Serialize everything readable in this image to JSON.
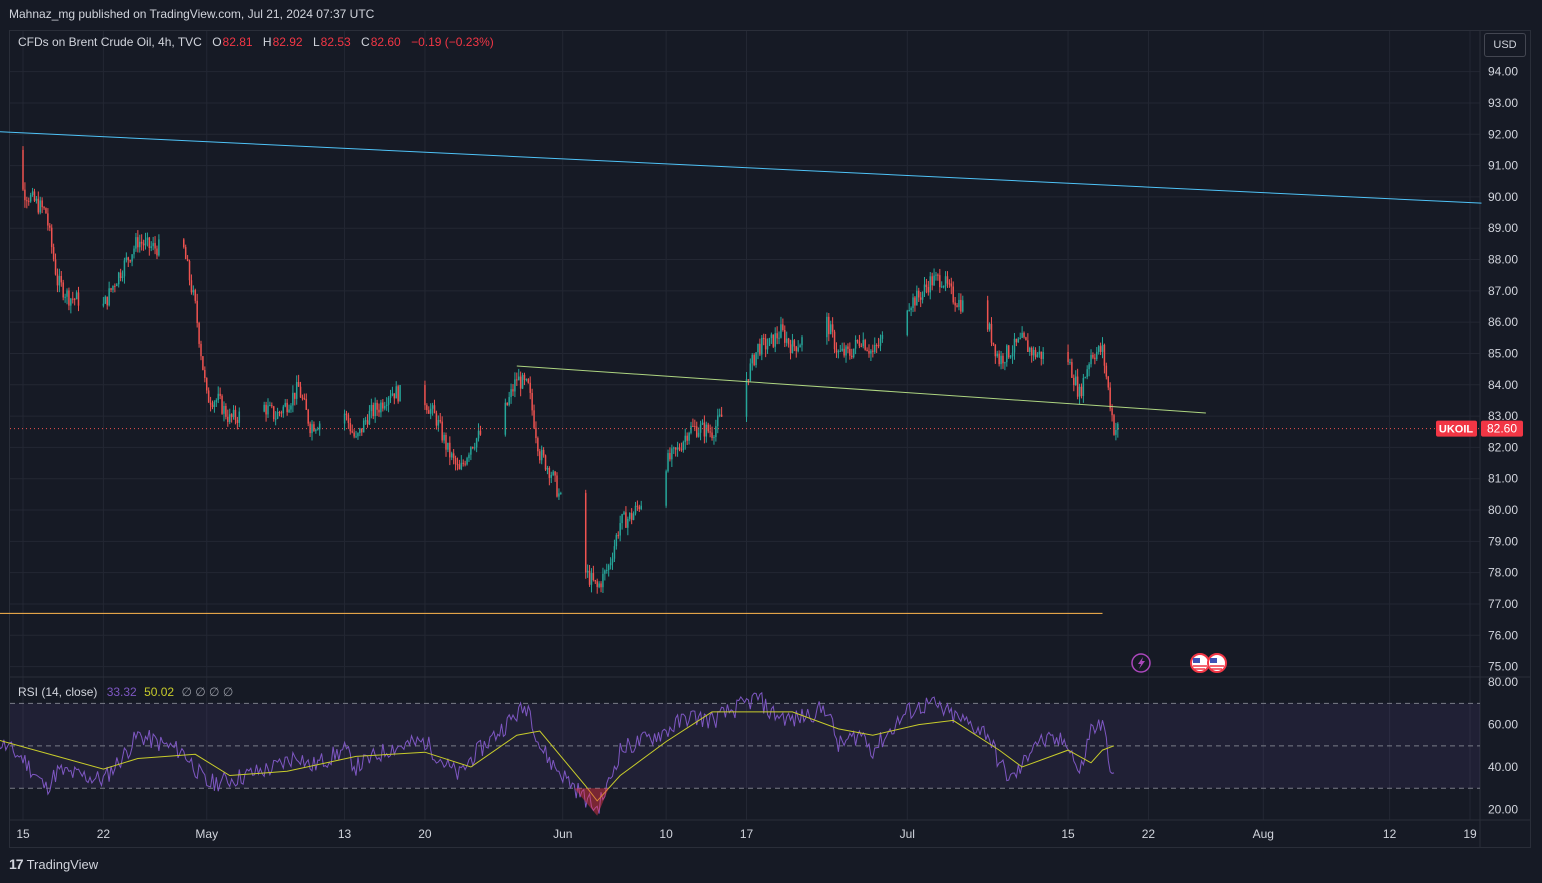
{
  "header": {
    "published": "Mahnaz_mg published on TradingView.com, Jul 21, 2024 07:37 UTC"
  },
  "legend": {
    "symbol": "CFDs on Brent Crude Oil, 4h, TVC",
    "o_label": "O",
    "o_value": "82.81",
    "h_label": "H",
    "h_value": "82.92",
    "l_label": "L",
    "l_value": "82.53",
    "c_label": "C",
    "c_value": "82.60",
    "change": "−0.19 (−0.23%)"
  },
  "currency_button": "USD",
  "price_tag": {
    "symbol": "UKOIL",
    "value": "82.60"
  },
  "rsi_legend": {
    "name": "RSI (14, close)",
    "rsi_value": "33.32",
    "ma_value": "50.02",
    "extras": "∅ ∅ ∅ ∅"
  },
  "footer": {
    "brand": "TradingView"
  },
  "colors": {
    "background": "#161a25",
    "up": "#26a69a",
    "down": "#ef5350",
    "resistance_line": "#4fc3f7",
    "support_line": "#ffb74d",
    "trend_line": "#aed581",
    "rsi_line": "#7e57c2",
    "rsi_ma": "#c8cc2b"
  },
  "chart_data": [
    {
      "type": "candlestick",
      "title": "CFDs on Brent Crude Oil, 4h, TVC",
      "xlabel": "",
      "ylabel": "",
      "ylim": [
        74.7,
        94.5
      ],
      "y_ticks": [
        "94.00",
        "93.00",
        "92.00",
        "91.00",
        "90.00",
        "89.00",
        "88.00",
        "87.00",
        "86.00",
        "85.00",
        "84.00",
        "83.00",
        "82.00",
        "81.00",
        "80.00",
        "79.00",
        "78.00",
        "77.00",
        "76.00",
        "75.00"
      ],
      "x_ticks": [
        "15",
        "22",
        "May",
        "13",
        "20",
        "Jun",
        "10",
        "17",
        "Jul",
        "15",
        "22",
        "Aug",
        "12",
        "19"
      ],
      "x_tick_dates": [
        "2024-04-15",
        "2024-04-22",
        "2024-05-01",
        "2024-05-13",
        "2024-05-20",
        "2024-06-01",
        "2024-06-10",
        "2024-06-17",
        "2024-07-01",
        "2024-07-15",
        "2024-07-22",
        "2024-08-01",
        "2024-08-12",
        "2024-08-19"
      ],
      "last_price": 82.6,
      "path_close": [
        [
          "2024-04-12",
          92.2
        ],
        [
          "2024-04-15",
          90.2
        ],
        [
          "2024-04-17",
          89.5
        ],
        [
          "2024-04-18",
          87.3
        ],
        [
          "2024-04-19",
          86.8
        ],
        [
          "2024-04-22",
          86.5
        ],
        [
          "2024-04-23",
          87.3
        ],
        [
          "2024-04-25",
          88.6
        ],
        [
          "2024-04-26",
          88.4
        ],
        [
          "2024-04-29",
          88.3
        ],
        [
          "2024-04-30",
          86.5
        ],
        [
          "2024-05-01",
          83.6
        ],
        [
          "2024-05-02",
          83.5
        ],
        [
          "2024-05-03",
          82.9
        ],
        [
          "2024-05-06",
          83.3
        ],
        [
          "2024-05-07",
          83.0
        ],
        [
          "2024-05-08",
          83.4
        ],
        [
          "2024-05-09",
          83.9
        ],
        [
          "2024-05-10",
          82.7
        ],
        [
          "2024-05-13",
          83.1
        ],
        [
          "2024-05-14",
          82.2
        ],
        [
          "2024-05-15",
          83.0
        ],
        [
          "2024-05-16",
          83.3
        ],
        [
          "2024-05-17",
          83.8
        ],
        [
          "2024-05-20",
          83.5
        ],
        [
          "2024-05-21",
          82.9
        ],
        [
          "2024-05-22",
          81.9
        ],
        [
          "2024-05-23",
          81.2
        ],
        [
          "2024-05-24",
          82.1
        ],
        [
          "2024-05-27",
          83.2
        ],
        [
          "2024-05-28",
          84.2
        ],
        [
          "2024-05-29",
          83.9
        ],
        [
          "2024-05-30",
          81.8
        ],
        [
          "2024-05-31",
          81.2
        ],
        [
          "2024-06-03",
          78.0
        ],
        [
          "2024-06-04",
          77.5
        ],
        [
          "2024-06-05",
          78.2
        ],
        [
          "2024-06-06",
          79.6
        ],
        [
          "2024-06-07",
          79.8
        ],
        [
          "2024-06-10",
          81.5
        ],
        [
          "2024-06-11",
          81.9
        ],
        [
          "2024-06-12",
          82.6
        ],
        [
          "2024-06-13",
          82.6
        ],
        [
          "2024-06-14",
          82.5
        ],
        [
          "2024-06-17",
          84.2
        ],
        [
          "2024-06-18",
          85.2
        ],
        [
          "2024-06-19",
          85.3
        ],
        [
          "2024-06-20",
          85.7
        ],
        [
          "2024-06-21",
          85.2
        ],
        [
          "2024-06-24",
          86.0
        ],
        [
          "2024-06-25",
          85.0
        ],
        [
          "2024-06-26",
          85.0
        ],
        [
          "2024-06-27",
          85.5
        ],
        [
          "2024-06-28",
          85.0
        ],
        [
          "2024-07-01",
          86.6
        ],
        [
          "2024-07-02",
          86.8
        ],
        [
          "2024-07-03",
          87.3
        ],
        [
          "2024-07-04",
          87.4
        ],
        [
          "2024-07-05",
          86.8
        ],
        [
          "2024-07-08",
          85.9
        ],
        [
          "2024-07-09",
          84.8
        ],
        [
          "2024-07-10",
          85.1
        ],
        [
          "2024-07-11",
          85.4
        ],
        [
          "2024-07-12",
          85.0
        ],
        [
          "2024-07-15",
          84.8
        ],
        [
          "2024-07-16",
          83.7
        ],
        [
          "2024-07-17",
          85.0
        ],
        [
          "2024-07-18",
          85.1
        ],
        [
          "2024-07-19",
          82.6
        ]
      ],
      "lines": [
        {
          "from": [
            "2024-04-12",
            92.1
          ],
          "to": [
            "2024-08-20",
            89.8
          ]
        },
        {
          "from": [
            "2024-05-28",
            84.6
          ],
          "to": [
            "2024-07-27",
            83.1
          ]
        },
        {
          "from": [
            "2024-04-12",
            76.7
          ],
          "to": [
            "2024-07-18",
            76.7
          ]
        }
      ]
    },
    {
      "type": "line",
      "title": "RSI (14, close)",
      "xlabel": "",
      "ylabel": "",
      "ylim": [
        15,
        82
      ],
      "y_ticks": [
        "80.00",
        "60.00",
        "40.00",
        "20.00"
      ],
      "bands": [
        70,
        50,
        30
      ],
      "series": [
        {
          "values": [
            [
              "2024-04-12",
              55
            ],
            [
              "2024-04-15",
              44
            ],
            [
              "2024-04-17",
              30
            ],
            [
              "2024-04-18",
              38
            ],
            [
              "2024-04-22",
              34
            ],
            [
              "2024-04-24",
              47
            ],
            [
              "2024-04-25",
              55
            ],
            [
              "2024-04-29",
              47
            ],
            [
              "2024-05-01",
              32
            ],
            [
              "2024-05-03",
              34
            ],
            [
              "2024-05-07",
              40
            ],
            [
              "2024-05-09",
              46
            ],
            [
              "2024-05-10",
              40
            ],
            [
              "2024-05-13",
              48
            ],
            [
              "2024-05-14",
              40
            ],
            [
              "2024-05-17",
              49
            ],
            [
              "2024-05-20",
              52
            ],
            [
              "2024-05-22",
              40
            ],
            [
              "2024-05-23",
              36
            ],
            [
              "2024-05-24",
              44
            ],
            [
              "2024-05-28",
              65
            ],
            [
              "2024-05-29",
              69
            ],
            [
              "2024-05-30",
              50
            ],
            [
              "2024-05-31",
              42
            ],
            [
              "2024-06-03",
              25
            ],
            [
              "2024-06-04",
              20
            ],
            [
              "2024-06-05",
              32
            ],
            [
              "2024-06-06",
              48
            ],
            [
              "2024-06-10",
              57
            ],
            [
              "2024-06-12",
              64
            ],
            [
              "2024-06-14",
              62
            ],
            [
              "2024-06-17",
              70
            ],
            [
              "2024-06-18",
              73
            ],
            [
              "2024-06-19",
              66
            ],
            [
              "2024-06-21",
              62
            ],
            [
              "2024-06-24",
              68
            ],
            [
              "2024-06-25",
              50
            ],
            [
              "2024-06-27",
              56
            ],
            [
              "2024-06-28",
              48
            ],
            [
              "2024-07-01",
              66
            ],
            [
              "2024-07-03",
              70
            ],
            [
              "2024-07-05",
              64
            ],
            [
              "2024-07-08",
              56
            ],
            [
              "2024-07-09",
              42
            ],
            [
              "2024-07-10",
              34
            ],
            [
              "2024-07-11",
              40
            ],
            [
              "2024-07-12",
              52
            ],
            [
              "2024-07-15",
              52
            ],
            [
              "2024-07-16",
              36
            ],
            [
              "2024-07-17",
              58
            ],
            [
              "2024-07-18",
              60
            ],
            [
              "2024-07-19",
              33.32
            ]
          ]
        },
        {
          "values": [
            [
              "2024-04-12",
              54
            ],
            [
              "2024-04-18",
              45
            ],
            [
              "2024-04-22",
              39
            ],
            [
              "2024-04-25",
              44
            ],
            [
              "2024-04-30",
              46
            ],
            [
              "2024-05-03",
              36
            ],
            [
              "2024-05-08",
              38
            ],
            [
              "2024-05-14",
              45
            ],
            [
              "2024-05-20",
              47
            ],
            [
              "2024-05-24",
              40
            ],
            [
              "2024-05-28",
              55
            ],
            [
              "2024-05-30",
              57
            ],
            [
              "2024-06-03",
              31
            ],
            [
              "2024-06-04",
              24
            ],
            [
              "2024-06-06",
              36
            ],
            [
              "2024-06-10",
              52
            ],
            [
              "2024-06-14",
              66
            ],
            [
              "2024-06-18",
              66
            ],
            [
              "2024-06-21",
              66
            ],
            [
              "2024-06-25",
              58
            ],
            [
              "2024-06-28",
              55
            ],
            [
              "2024-07-02",
              60
            ],
            [
              "2024-07-05",
              62
            ],
            [
              "2024-07-09",
              48
            ],
            [
              "2024-07-11",
              40
            ],
            [
              "2024-07-15",
              48
            ],
            [
              "2024-07-17",
              42
            ],
            [
              "2024-07-18",
              48
            ],
            [
              "2024-07-19",
              50.02
            ]
          ]
        }
      ]
    }
  ]
}
